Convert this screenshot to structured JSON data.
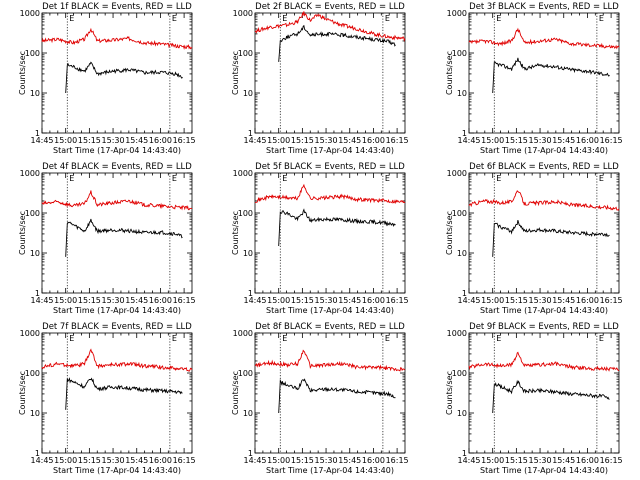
{
  "chart_data": [
    {
      "type": "line",
      "title": "Det 1f BLACK = Events, RED = LLD",
      "xlabel": "Start Time (17-Apr-04 14:43:40)",
      "ylabel": "Counts/sec",
      "yscale": "log",
      "ylim": [
        1,
        1000
      ],
      "xlim": [
        "14:45",
        "16:20"
      ],
      "xticks": [
        "14:45",
        "15:00",
        "15:15",
        "15:30",
        "15:45",
        "16:00",
        "16:15"
      ],
      "yticks": [
        "1",
        "10",
        "100",
        "1000"
      ],
      "markers": [
        "15:01",
        "16:06"
      ],
      "marker_labels": [
        "E",
        "E"
      ],
      "series": [
        {
          "name": "RED",
          "color": "#e00000",
          "x": [
            "14:45",
            "14:55",
            "15:05",
            "15:12",
            "15:16",
            "15:20",
            "15:30",
            "15:40",
            "15:50",
            "16:00",
            "16:10",
            "16:20"
          ],
          "y": [
            200,
            220,
            180,
            220,
            400,
            200,
            210,
            230,
            180,
            170,
            150,
            140
          ]
        },
        {
          "name": "BLACK",
          "color": "#000000",
          "x": [
            "15:00",
            "15:01",
            "15:05",
            "15:12",
            "15:16",
            "15:20",
            "15:30",
            "15:40",
            "15:50",
            "16:00",
            "16:10",
            "16:14"
          ],
          "y": [
            10,
            50,
            45,
            35,
            55,
            30,
            35,
            38,
            32,
            33,
            30,
            25
          ]
        }
      ]
    },
    {
      "type": "line",
      "title": "Det 2f BLACK = Events, RED = LLD",
      "xlabel": "Start Time (17-Apr-04 14:43:40)",
      "ylabel": "Counts/sec",
      "yscale": "log",
      "ylim": [
        1,
        1000
      ],
      "xlim": [
        "14:45",
        "16:20"
      ],
      "xticks": [
        "14:45",
        "15:00",
        "15:15",
        "15:30",
        "15:45",
        "16:00",
        "16:15"
      ],
      "yticks": [
        "1",
        "10",
        "100",
        "1000"
      ],
      "markers": [
        "15:01",
        "16:06"
      ],
      "marker_labels": [
        "E",
        "E"
      ],
      "series": [
        {
          "name": "RED",
          "color": "#e00000",
          "x": [
            "14:45",
            "14:55",
            "15:05",
            "15:12",
            "15:16",
            "15:20",
            "15:25",
            "15:30",
            "15:40",
            "15:50",
            "16:00",
            "16:10",
            "16:20"
          ],
          "y": [
            350,
            450,
            500,
            600,
            1000,
            650,
            900,
            700,
            500,
            400,
            300,
            250,
            230
          ]
        },
        {
          "name": "BLACK",
          "color": "#000000",
          "x": [
            "15:00",
            "15:01",
            "15:05",
            "15:12",
            "15:16",
            "15:20",
            "15:30",
            "15:40",
            "15:50",
            "16:00",
            "16:10",
            "16:14"
          ],
          "y": [
            60,
            200,
            250,
            300,
            450,
            280,
            300,
            280,
            250,
            220,
            190,
            160
          ]
        }
      ]
    },
    {
      "type": "line",
      "title": "Det 3f BLACK = Events, RED = LLD",
      "xlabel": "Start Time (17-Apr-04 14:43:40)",
      "ylabel": "Counts/sec",
      "yscale": "log",
      "ylim": [
        1,
        1000
      ],
      "xlim": [
        "14:45",
        "16:20"
      ],
      "xticks": [
        "14:45",
        "15:00",
        "15:15",
        "15:30",
        "15:45",
        "16:00",
        "16:15"
      ],
      "yticks": [
        "1",
        "10",
        "100",
        "1000"
      ],
      "markers": [
        "15:01",
        "16:06"
      ],
      "marker_labels": [
        "E",
        "E"
      ],
      "series": [
        {
          "name": "RED",
          "color": "#e00000",
          "x": [
            "14:45",
            "14:55",
            "15:05",
            "15:12",
            "15:16",
            "15:20",
            "15:30",
            "15:40",
            "15:50",
            "16:00",
            "16:10",
            "16:20"
          ],
          "y": [
            180,
            200,
            170,
            200,
            400,
            180,
            200,
            220,
            170,
            160,
            150,
            140
          ]
        },
        {
          "name": "BLACK",
          "color": "#000000",
          "x": [
            "15:00",
            "15:01",
            "15:05",
            "15:12",
            "15:16",
            "15:20",
            "15:30",
            "15:40",
            "15:50",
            "16:00",
            "16:10",
            "16:14"
          ],
          "y": [
            10,
            55,
            50,
            40,
            70,
            40,
            50,
            45,
            38,
            35,
            30,
            28
          ]
        }
      ]
    },
    {
      "type": "line",
      "title": "Det 4f BLACK = Events, RED = LLD",
      "xlabel": "Start Time (17-Apr-04 14:43:40)",
      "ylabel": "Counts/sec",
      "yscale": "log",
      "ylim": [
        1,
        1000
      ],
      "xlim": [
        "14:45",
        "16:20"
      ],
      "xticks": [
        "14:45",
        "15:00",
        "15:15",
        "15:30",
        "15:45",
        "16:00",
        "16:15"
      ],
      "yticks": [
        "1",
        "10",
        "100",
        "1000"
      ],
      "markers": [
        "15:01",
        "16:06"
      ],
      "marker_labels": [
        "E",
        "E"
      ],
      "series": [
        {
          "name": "RED",
          "color": "#e00000",
          "x": [
            "14:45",
            "14:55",
            "15:05",
            "15:12",
            "15:16",
            "15:20",
            "15:30",
            "15:40",
            "15:50",
            "16:00",
            "16:10",
            "16:20"
          ],
          "y": [
            170,
            190,
            150,
            170,
            330,
            160,
            180,
            200,
            160,
            150,
            140,
            130
          ]
        },
        {
          "name": "BLACK",
          "color": "#000000",
          "x": [
            "15:00",
            "15:01",
            "15:05",
            "15:12",
            "15:16",
            "15:20",
            "15:30",
            "15:40",
            "15:50",
            "16:00",
            "16:10",
            "16:14"
          ],
          "y": [
            8,
            60,
            50,
            35,
            65,
            35,
            38,
            36,
            32,
            33,
            30,
            25
          ]
        }
      ]
    },
    {
      "type": "line",
      "title": "Det 5f BLACK = Events, RED = LLD",
      "xlabel": "Start Time (17-Apr-04 14:43:40)",
      "ylabel": "Counts/sec",
      "yscale": "log",
      "ylim": [
        1,
        1000
      ],
      "xlim": [
        "14:45",
        "16:20"
      ],
      "xticks": [
        "14:45",
        "15:00",
        "15:15",
        "15:30",
        "15:45",
        "16:00",
        "16:15"
      ],
      "yticks": [
        "1",
        "10",
        "100",
        "1000"
      ],
      "markers": [
        "15:01",
        "16:06"
      ],
      "marker_labels": [
        "E",
        "E"
      ],
      "series": [
        {
          "name": "RED",
          "color": "#e00000",
          "x": [
            "14:45",
            "14:55",
            "15:05",
            "15:12",
            "15:16",
            "15:20",
            "15:30",
            "15:40",
            "15:50",
            "16:00",
            "16:10",
            "16:20"
          ],
          "y": [
            200,
            260,
            240,
            230,
            500,
            230,
            240,
            260,
            220,
            210,
            200,
            190
          ]
        },
        {
          "name": "BLACK",
          "color": "#000000",
          "x": [
            "15:00",
            "15:01",
            "15:05",
            "15:12",
            "15:16",
            "15:20",
            "15:30",
            "15:40",
            "15:50",
            "16:00",
            "16:10",
            "16:14"
          ],
          "y": [
            15,
            110,
            100,
            70,
            110,
            65,
            70,
            68,
            62,
            60,
            55,
            52
          ]
        }
      ]
    },
    {
      "type": "line",
      "title": "Det 6f BLACK = Events, RED = LLD",
      "xlabel": "Start Time (17-Apr-04 14:43:40)",
      "ylabel": "Counts/sec",
      "yscale": "log",
      "ylim": [
        1,
        1000
      ],
      "xlim": [
        "14:45",
        "16:20"
      ],
      "xticks": [
        "14:45",
        "15:00",
        "15:15",
        "15:30",
        "15:45",
        "16:00",
        "16:15"
      ],
      "yticks": [
        "1",
        "10",
        "100",
        "1000"
      ],
      "markers": [
        "15:01",
        "16:06"
      ],
      "marker_labels": [
        "E",
        "E"
      ],
      "series": [
        {
          "name": "RED",
          "color": "#e00000",
          "x": [
            "14:45",
            "14:55",
            "15:05",
            "15:12",
            "15:16",
            "15:20",
            "15:30",
            "15:40",
            "15:50",
            "16:00",
            "16:10",
            "16:20"
          ],
          "y": [
            160,
            200,
            180,
            190,
            380,
            170,
            180,
            190,
            160,
            150,
            140,
            130
          ]
        },
        {
          "name": "BLACK",
          "color": "#000000",
          "x": [
            "15:00",
            "15:01",
            "15:05",
            "15:12",
            "15:16",
            "15:20",
            "15:30",
            "15:40",
            "15:50",
            "16:00",
            "16:10",
            "16:14"
          ],
          "y": [
            8,
            55,
            45,
            35,
            60,
            35,
            38,
            35,
            32,
            30,
            30,
            28
          ]
        }
      ]
    },
    {
      "type": "line",
      "title": "Det 7f BLACK = Events, RED = LLD",
      "xlabel": "Start Time (17-Apr-04 14:43:40)",
      "ylabel": "Counts/sec",
      "yscale": "log",
      "ylim": [
        1,
        1000
      ],
      "xlim": [
        "14:45",
        "16:20"
      ],
      "xticks": [
        "14:45",
        "15:00",
        "15:15",
        "15:30",
        "15:45",
        "16:00",
        "16:15"
      ],
      "yticks": [
        "1",
        "10",
        "100",
        "1000"
      ],
      "markers": [
        "15:01",
        "16:06"
      ],
      "marker_labels": [
        "E",
        "E"
      ],
      "series": [
        {
          "name": "RED",
          "color": "#e00000",
          "x": [
            "14:45",
            "14:55",
            "15:05",
            "15:12",
            "15:16",
            "15:20",
            "15:30",
            "15:40",
            "15:50",
            "16:00",
            "16:10",
            "16:20"
          ],
          "y": [
            140,
            170,
            150,
            170,
            380,
            150,
            160,
            170,
            150,
            140,
            130,
            120
          ]
        },
        {
          "name": "BLACK",
          "color": "#000000",
          "x": [
            "15:00",
            "15:01",
            "15:05",
            "15:12",
            "15:16",
            "15:20",
            "15:30",
            "15:40",
            "15:50",
            "16:00",
            "16:10",
            "16:14"
          ],
          "y": [
            12,
            70,
            60,
            45,
            75,
            40,
            45,
            42,
            38,
            36,
            34,
            32
          ]
        }
      ]
    },
    {
      "type": "line",
      "title": "Det 8f BLACK = Events, RED = LLD",
      "xlabel": "Start Time (17-Apr-04 14:43:40)",
      "ylabel": "Counts/sec",
      "yscale": "log",
      "ylim": [
        1,
        1000
      ],
      "xlim": [
        "14:45",
        "16:20"
      ],
      "xticks": [
        "14:45",
        "15:00",
        "15:15",
        "15:30",
        "15:45",
        "16:00",
        "16:15"
      ],
      "yticks": [
        "1",
        "10",
        "100",
        "1000"
      ],
      "markers": [
        "15:01",
        "16:06"
      ],
      "marker_labels": [
        "E",
        "E"
      ],
      "series": [
        {
          "name": "RED",
          "color": "#e00000",
          "x": [
            "14:45",
            "14:55",
            "15:05",
            "15:12",
            "15:16",
            "15:20",
            "15:30",
            "15:40",
            "15:50",
            "16:00",
            "16:10",
            "16:20"
          ],
          "y": [
            150,
            180,
            160,
            170,
            380,
            150,
            160,
            170,
            140,
            140,
            130,
            120
          ]
        },
        {
          "name": "BLACK",
          "color": "#000000",
          "x": [
            "15:00",
            "15:01",
            "15:05",
            "15:12",
            "15:16",
            "15:20",
            "15:30",
            "15:40",
            "15:50",
            "16:00",
            "16:10",
            "16:14"
          ],
          "y": [
            10,
            60,
            50,
            40,
            70,
            36,
            40,
            38,
            34,
            32,
            30,
            24
          ]
        }
      ]
    },
    {
      "type": "line",
      "title": "Det 9f BLACK = Events, RED = LLD",
      "xlabel": "Start Time (17-Apr-04 14:43:40)",
      "ylabel": "Counts/sec",
      "yscale": "log",
      "ylim": [
        1,
        1000
      ],
      "xlim": [
        "14:45",
        "16:20"
      ],
      "xticks": [
        "14:45",
        "15:00",
        "15:15",
        "15:30",
        "15:45",
        "16:00",
        "16:15"
      ],
      "yticks": [
        "1",
        "10",
        "100",
        "1000"
      ],
      "markers": [
        "15:01",
        "16:06"
      ],
      "marker_labels": [
        "E",
        "E"
      ],
      "series": [
        {
          "name": "RED",
          "color": "#e00000",
          "x": [
            "14:45",
            "14:55",
            "15:05",
            "15:12",
            "15:16",
            "15:20",
            "15:30",
            "15:40",
            "15:50",
            "16:00",
            "16:10",
            "16:20"
          ],
          "y": [
            140,
            170,
            150,
            160,
            320,
            150,
            160,
            170,
            140,
            130,
            130,
            120
          ]
        },
        {
          "name": "BLACK",
          "color": "#000000",
          "x": [
            "15:00",
            "15:01",
            "15:05",
            "15:12",
            "15:16",
            "15:20",
            "15:30",
            "15:40",
            "15:50",
            "16:00",
            "16:10",
            "16:14"
          ],
          "y": [
            10,
            55,
            45,
            35,
            60,
            35,
            36,
            34,
            30,
            28,
            26,
            22
          ]
        }
      ]
    }
  ]
}
